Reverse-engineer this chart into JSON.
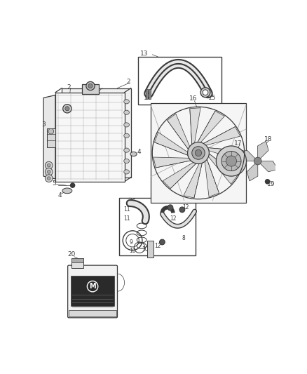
{
  "bg_color": "#ffffff",
  "fig_width": 4.38,
  "fig_height": 5.33,
  "dpi": 100,
  "gray": "#3a3a3a",
  "lgray": "#777777",
  "llgray": "#aaaaaa"
}
